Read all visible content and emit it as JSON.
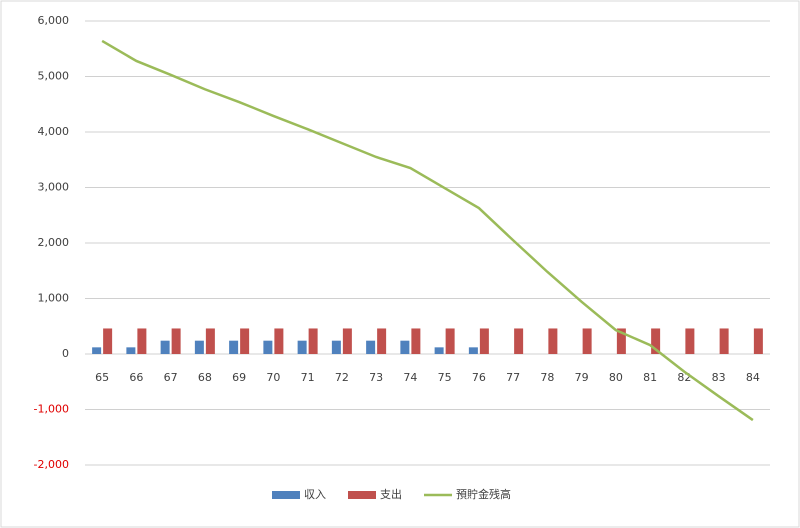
{
  "chart_data": {
    "type": "bar",
    "categories": [
      "65",
      "66",
      "67",
      "68",
      "69",
      "70",
      "71",
      "72",
      "73",
      "74",
      "75",
      "76",
      "77",
      "78",
      "79",
      "80",
      "81",
      "82",
      "83",
      "84"
    ],
    "series": [
      {
        "name": "収入",
        "type": "bar",
        "color": "#4f81bd",
        "values": [
          120,
          120,
          240,
          240,
          240,
          240,
          240,
          240,
          240,
          240,
          120,
          120,
          0,
          0,
          0,
          0,
          0,
          0,
          0,
          0
        ]
      },
      {
        "name": "支出",
        "type": "bar",
        "color": "#c0504d",
        "values": [
          460,
          460,
          460,
          460,
          460,
          460,
          460,
          460,
          460,
          460,
          460,
          460,
          460,
          460,
          460,
          460,
          460,
          460,
          460,
          460
        ]
      },
      {
        "name": "預貯金残高",
        "type": "line",
        "color": "#9bbb59",
        "values": [
          5640,
          5280,
          5030,
          4770,
          4540,
          4290,
          4050,
          3800,
          3550,
          3350,
          2990,
          2630,
          2050,
          1480,
          940,
          430,
          160,
          -320,
          -760,
          -1190
        ]
      }
    ],
    "ylim": [
      -2000,
      6000
    ],
    "yticks": [
      {
        "value": -2000,
        "label": "-2,000"
      },
      {
        "value": -1000,
        "label": "-1,000"
      },
      0,
      {
        "value": 1000,
        "label": "1,000"
      },
      {
        "value": 2000,
        "label": "2,000"
      },
      {
        "value": 3000,
        "label": "3,000"
      },
      {
        "value": 4000,
        "label": "4,000"
      },
      {
        "value": 5000,
        "label": "5,000"
      },
      {
        "value": 6000,
        "label": "6,000"
      }
    ],
    "negative_tick_color": "#e00000",
    "grid": true,
    "legend": "bottom"
  }
}
